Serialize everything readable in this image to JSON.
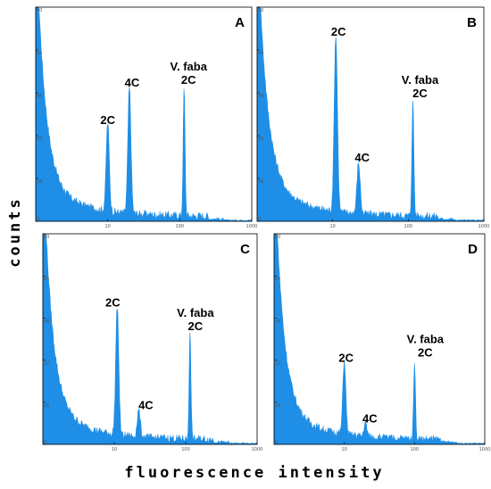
{
  "figure": {
    "xlabel": "fluorescence intensity",
    "ylabel": "counts"
  },
  "colors": {
    "histogram": "#1e8ee6",
    "frame": "#000000"
  },
  "chart_data": [
    {
      "type": "area",
      "panel": "A",
      "xscale": "log",
      "xlim": [
        1,
        1000
      ],
      "ylim": [
        0,
        80
      ],
      "x_ticks": [
        "10",
        "100",
        "1000"
      ],
      "y_ticks": [
        "0",
        "16",
        "32",
        "48",
        "64",
        "80"
      ],
      "peaks": [
        {
          "label": "2C",
          "x": 10,
          "y": 33
        },
        {
          "label": "4C",
          "x": 20,
          "y": 47
        },
        {
          "label": "V. faba\n2C",
          "x": 115,
          "y": 48
        }
      ],
      "near_origin_debris": true
    },
    {
      "type": "area",
      "panel": "B",
      "xscale": "log",
      "xlim": [
        1,
        1000
      ],
      "ylim": [
        0,
        80
      ],
      "x_ticks": [
        "10",
        "100",
        "1000"
      ],
      "y_ticks": [
        "0",
        "16",
        "32",
        "48",
        "64",
        "80"
      ],
      "peaks": [
        {
          "label": "2C",
          "x": 11,
          "y": 66
        },
        {
          "label": "4C",
          "x": 22,
          "y": 19
        },
        {
          "label": "V. faba\n2C",
          "x": 115,
          "y": 43
        }
      ],
      "near_origin_debris": true
    },
    {
      "type": "area",
      "panel": "C",
      "xscale": "log",
      "xlim": [
        1,
        1000
      ],
      "ylim": [
        0,
        80
      ],
      "x_ticks": [
        "10",
        "100",
        "1000"
      ],
      "y_ticks": [
        "0",
        "16",
        "32",
        "48",
        "64",
        "80"
      ],
      "peaks": [
        {
          "label": "2C",
          "x": 11,
          "y": 49
        },
        {
          "label": "4C",
          "x": 22,
          "y": 10
        },
        {
          "label": "V. faba\n2C",
          "x": 115,
          "y": 40
        }
      ],
      "near_origin_debris": true
    },
    {
      "type": "area",
      "panel": "D",
      "xscale": "log",
      "xlim": [
        1,
        1000
      ],
      "ylim": [
        0,
        80
      ],
      "x_ticks": [
        "10",
        "100",
        "1000"
      ],
      "y_ticks": [
        "0",
        "16",
        "32",
        "48",
        "64",
        "80"
      ],
      "peaks": [
        {
          "label": "2C",
          "x": 10,
          "y": 28
        },
        {
          "label": "4C",
          "x": 20,
          "y": 5
        },
        {
          "label": "V. faba\n2C",
          "x": 100,
          "y": 30
        }
      ],
      "near_origin_debris": true
    }
  ]
}
